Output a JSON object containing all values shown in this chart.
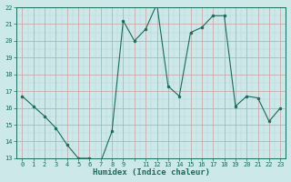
{
  "x": [
    0,
    1,
    2,
    3,
    4,
    5,
    6,
    7,
    8,
    9,
    10,
    11,
    12,
    13,
    14,
    15,
    16,
    17,
    18,
    19,
    20,
    21,
    22,
    23
  ],
  "y": [
    16.7,
    16.1,
    15.5,
    14.8,
    13.8,
    13.0,
    13.0,
    12.8,
    14.6,
    21.2,
    20.0,
    20.7,
    22.2,
    17.3,
    16.7,
    20.5,
    20.8,
    21.5,
    21.5,
    16.1,
    16.7,
    16.6,
    15.2,
    16.0
  ],
  "xlabel": "Humidex (Indice chaleur)",
  "ylim": [
    13,
    22
  ],
  "xlim": [
    -0.5,
    23.5
  ],
  "yticks": [
    13,
    14,
    15,
    16,
    17,
    18,
    19,
    20,
    21,
    22
  ],
  "xticks": [
    0,
    1,
    2,
    3,
    4,
    5,
    6,
    7,
    8,
    9,
    11,
    12,
    13,
    14,
    15,
    16,
    17,
    18,
    19,
    20,
    21,
    22,
    23
  ],
  "xtick_labels": [
    "0",
    "1",
    "2",
    "3",
    "4",
    "5",
    "6",
    "7",
    "8",
    "9",
    "11",
    "12",
    "13",
    "14",
    "15",
    "16",
    "17",
    "18",
    "19",
    "20",
    "21",
    "22",
    "23"
  ],
  "line_color": "#1a6b5a",
  "marker_color": "#1a6b5a",
  "bg_color": "#cce8e8",
  "grid_major_color": "#c8a0a0",
  "grid_minor_color": "#b8d0d0",
  "spine_color": "#1a6b5a"
}
